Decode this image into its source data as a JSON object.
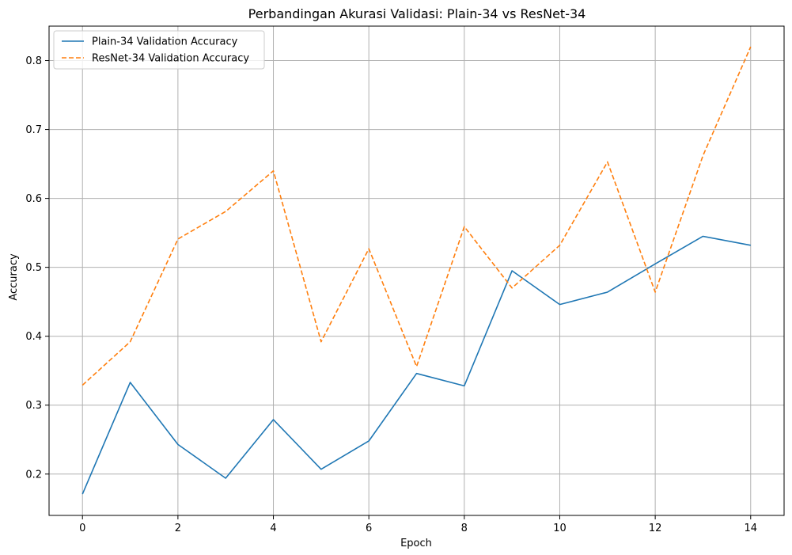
{
  "chart_data": {
    "type": "line",
    "title": "Perbandingan Akurasi Validasi: Plain-34 vs ResNet-34",
    "xlabel": "Epoch",
    "ylabel": "Accuracy",
    "x": [
      0,
      1,
      2,
      3,
      4,
      5,
      6,
      7,
      8,
      9,
      10,
      11,
      12,
      13,
      14
    ],
    "xlim": [
      -0.7,
      14.7
    ],
    "ylim": [
      0.14,
      0.85
    ],
    "xticks": [
      0,
      2,
      4,
      6,
      8,
      10,
      12,
      14
    ],
    "yticks": [
      0.2,
      0.3,
      0.4,
      0.5,
      0.6,
      0.7,
      0.8
    ],
    "grid": true,
    "legend_position": "upper-left",
    "series": [
      {
        "name": "Plain-34 Validation Accuracy",
        "color": "#1f77b4",
        "style": "solid",
        "values": [
          0.171,
          0.333,
          0.243,
          0.194,
          0.279,
          0.207,
          0.248,
          0.346,
          0.328,
          0.495,
          0.446,
          0.464,
          0.505,
          0.545,
          0.532
        ]
      },
      {
        "name": "ResNet-34 Validation Accuracy",
        "color": "#ff7f0e",
        "style": "dashed",
        "values": [
          0.329,
          0.392,
          0.541,
          0.581,
          0.64,
          0.392,
          0.527,
          0.356,
          0.559,
          0.47,
          0.532,
          0.653,
          0.464,
          0.662,
          0.82
        ]
      }
    ]
  }
}
